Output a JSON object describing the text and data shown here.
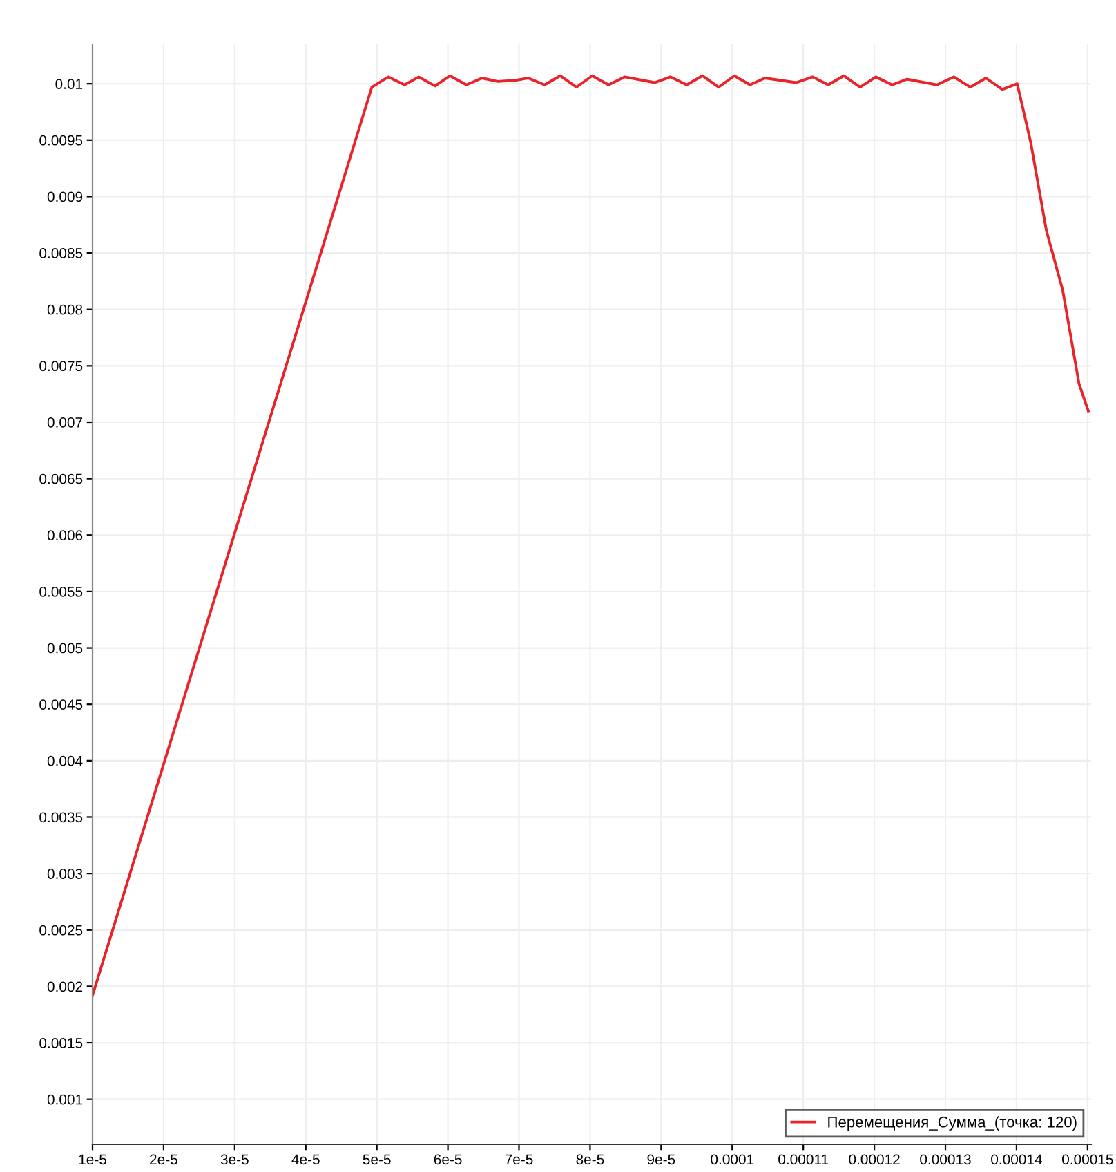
{
  "chart_data": {
    "type": "line",
    "x": [
      1e-05,
      4.71e-05,
      4.93e-05,
      5.16e-05,
      5.39e-05,
      5.59e-05,
      5.82e-05,
      6.03e-05,
      6.26e-05,
      6.48e-05,
      6.7e-05,
      6.95e-05,
      7.13e-05,
      7.36e-05,
      7.58e-05,
      7.81e-05,
      8.03e-05,
      8.26e-05,
      8.49e-05,
      8.91e-05,
      9.13e-05,
      9.36e-05,
      9.58e-05,
      9.81e-05,
      0.0001003,
      0.0001025,
      0.0001046,
      0.000109,
      0.0001113,
      0.0001135,
      0.0001157,
      0.000118,
      0.0001202,
      0.0001225,
      0.0001246,
      0.0001288,
      0.0001312,
      0.0001335,
      0.0001357,
      0.000138,
      0.0001401,
      0.000142,
      0.0001442,
      0.0001465,
      0.0001488,
      0.0001501
    ],
    "series": [
      {
        "name": "Перемещения_Сумма_(точка: 120)",
        "color": "#e8232a",
        "values": [
          0.00192,
          0.00952,
          0.00997,
          0.01006,
          0.00999,
          0.01006,
          0.00998,
          0.01007,
          0.00999,
          0.01005,
          0.01002,
          0.01003,
          0.01005,
          0.00999,
          0.01007,
          0.00997,
          0.01007,
          0.00999,
          0.01006,
          0.01001,
          0.01006,
          0.00999,
          0.01007,
          0.00997,
          0.01007,
          0.00999,
          0.01005,
          0.01001,
          0.01006,
          0.00999,
          0.01007,
          0.00997,
          0.01006,
          0.00999,
          0.01004,
          0.00999,
          0.01006,
          0.00997,
          0.01005,
          0.00995,
          0.01,
          0.00948,
          0.0087,
          0.00817,
          0.00734,
          0.0071
        ]
      }
    ],
    "xlim": [
      1e-05,
      0.0001505
    ],
    "ylim": [
      0.0006,
      0.01035
    ],
    "xticks": [
      {
        "value": 1e-05,
        "label": "1e-5"
      },
      {
        "value": 2e-05,
        "label": "2e-5"
      },
      {
        "value": 3e-05,
        "label": "3e-5"
      },
      {
        "value": 4e-05,
        "label": "4e-5"
      },
      {
        "value": 5e-05,
        "label": "5e-5"
      },
      {
        "value": 6e-05,
        "label": "6e-5"
      },
      {
        "value": 7e-05,
        "label": "7e-5"
      },
      {
        "value": 8e-05,
        "label": "8e-5"
      },
      {
        "value": 9e-05,
        "label": "9e-5"
      },
      0.0001,
      0.00011,
      0.00012,
      0.00013,
      0.00014,
      0.00015
    ],
    "yticks": [
      0.001,
      0.0015,
      0.002,
      0.0025,
      0.003,
      0.0035,
      0.004,
      0.0045,
      0.005,
      0.0055,
      0.006,
      0.0065,
      0.007,
      0.0075,
      0.008,
      0.0085,
      0.009,
      0.0095,
      0.01
    ],
    "grid": true,
    "legend": "bottom right",
    "marker": "none",
    "line_style": "solid"
  }
}
